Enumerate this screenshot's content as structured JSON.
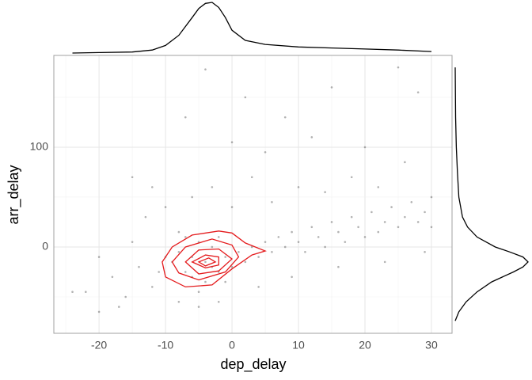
{
  "chart_data": {
    "type": "scatter",
    "x_label": "dep_delay",
    "y_label": "arr_delay",
    "xlim": [
      -26.8,
      33.1
    ],
    "ylim": [
      -86.5,
      192
    ],
    "xticks": [
      -20,
      -10,
      0,
      10,
      20,
      30
    ],
    "yticks": [
      0,
      100
    ],
    "x_minor_ticks": [
      -25,
      -15,
      -5,
      5,
      15,
      25
    ],
    "y_minor_ticks": [
      -50,
      50,
      150
    ],
    "grid": true,
    "point_color": "#000000",
    "x": [
      -4,
      -6,
      -3,
      -8,
      -2,
      -5,
      -7,
      -1,
      -9,
      -4,
      -3,
      -6,
      -10,
      -2,
      0,
      -5,
      -8,
      -1,
      -11,
      -7,
      1,
      2,
      3,
      4,
      5,
      6,
      7,
      8,
      9,
      10,
      11,
      12,
      13,
      14,
      15,
      16,
      17,
      18,
      19,
      20,
      21,
      22,
      23,
      24,
      25,
      26,
      27,
      28,
      29,
      30,
      -12,
      -14,
      -15,
      -13,
      -16,
      -18,
      -20,
      -22,
      -24,
      -17,
      -10,
      -6,
      -3,
      -5,
      -8,
      -2,
      0,
      3,
      5,
      8,
      2,
      15,
      25,
      28,
      20,
      12,
      18,
      26,
      -7,
      -4,
      0,
      10,
      6,
      14,
      22,
      30,
      -12,
      -15,
      4,
      9,
      16,
      23,
      29,
      -20
    ],
    "y": [
      -15,
      -10,
      -20,
      -5,
      -25,
      5,
      -25,
      -10,
      -15,
      -35,
      0,
      -30,
      -10,
      10,
      -20,
      -45,
      15,
      -35,
      -25,
      10,
      -5,
      -15,
      0,
      -10,
      5,
      -5,
      10,
      0,
      15,
      5,
      -5,
      20,
      10,
      0,
      25,
      15,
      5,
      30,
      20,
      10,
      35,
      15,
      25,
      40,
      20,
      30,
      45,
      25,
      35,
      20,
      -40,
      -20,
      5,
      30,
      -50,
      -30,
      -10,
      -45,
      -45,
      -60,
      40,
      50,
      60,
      -60,
      -55,
      -55,
      40,
      70,
      95,
      130,
      150,
      160,
      180,
      155,
      100,
      110,
      70,
      85,
      130,
      178,
      105,
      60,
      45,
      55,
      60,
      50,
      60,
      70,
      -40,
      -30,
      -20,
      -15,
      -5,
      -65
    ],
    "contours": {
      "color": "#e41a1c",
      "levels": [
        {
          "x": [
            -10.5,
            -9,
            -6,
            -2,
            0,
            2,
            5,
            3,
            0,
            -3,
            -7,
            -10
          ],
          "y": [
            -15,
            0,
            12,
            16,
            14,
            4,
            -4,
            -8,
            -22,
            -38,
            -40,
            -30
          ]
        },
        {
          "x": [
            -9,
            -7,
            -3,
            0,
            1,
            -1,
            -5,
            -8
          ],
          "y": [
            -15,
            0,
            8,
            2,
            -10,
            -25,
            -33,
            -26
          ]
        },
        {
          "x": [
            -7,
            -5,
            -2,
            0,
            -2,
            -5
          ],
          "y": [
            -15,
            -3,
            -2,
            -12,
            -24,
            -27
          ]
        },
        {
          "x": [
            -6,
            -4,
            -2,
            -2,
            -4
          ],
          "y": [
            -15,
            -8,
            -10,
            -18,
            -21
          ]
        },
        {
          "x": [
            -5,
            -3.5,
            -2.5,
            -4
          ],
          "y": [
            -15,
            -11,
            -15,
            -19
          ]
        }
      ]
    },
    "top_density": {
      "color": "#000000",
      "x": [
        -24,
        -20,
        -15,
        -12,
        -10,
        -8,
        -6,
        -5,
        -4,
        -3,
        -2,
        -1,
        0,
        2,
        5,
        10,
        15,
        20,
        25,
        30
      ],
      "values": [
        0,
        0.01,
        0.02,
        0.06,
        0.15,
        0.35,
        0.7,
        0.88,
        0.98,
        1.0,
        0.9,
        0.7,
        0.45,
        0.25,
        0.17,
        0.12,
        0.1,
        0.08,
        0.06,
        0.03
      ]
    },
    "right_density": {
      "color": "#000000",
      "y": [
        -74,
        -65,
        -55,
        -45,
        -35,
        -25,
        -20,
        -15,
        -10,
        -5,
        0,
        10,
        20,
        30,
        50,
        75,
        100,
        130,
        180
      ],
      "values": [
        0,
        0.05,
        0.15,
        0.3,
        0.5,
        0.8,
        0.93,
        1.0,
        0.93,
        0.75,
        0.55,
        0.3,
        0.17,
        0.1,
        0.05,
        0.03,
        0.015,
        0.005,
        0
      ]
    }
  }
}
